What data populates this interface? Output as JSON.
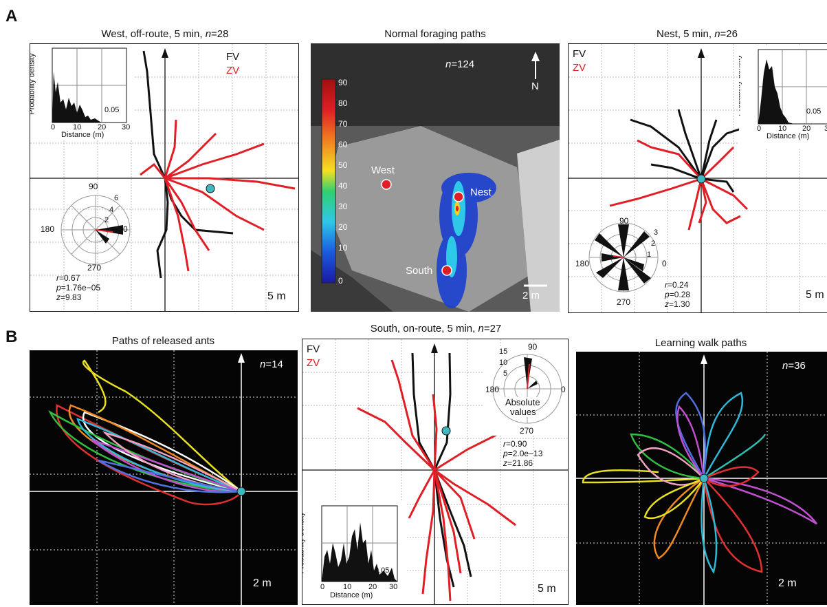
{
  "panel_labels": {
    "A": "A",
    "B": "B"
  },
  "titles": {
    "west": {
      "text": "West, off-route, 5 min, ",
      "n": "n",
      "val": "=28"
    },
    "normal": "Normal foraging paths",
    "nest": {
      "text": "Nest, 5 min, ",
      "n": "n",
      "val": "=26"
    },
    "released": "Paths of released ants",
    "south": {
      "text": "South, on-route, 5 min, ",
      "n": "n",
      "val": "=27"
    },
    "learning": "Learning walk paths"
  },
  "legend": {
    "fv": "FV",
    "zv": "ZV"
  },
  "colors": {
    "fv": "#111111",
    "zv": "#e01e25",
    "start": "#3fb8c0"
  },
  "scales": {
    "west": "5 m",
    "nest": "5 m",
    "south": "5 m",
    "released": "2 m",
    "learning": "2 m",
    "map": "2 m"
  },
  "hist": {
    "ylabel": "Probability density",
    "xlabel": "Distance (m)",
    "ytick": "0.05",
    "xticks": [
      "0",
      "10",
      "20",
      "30"
    ]
  },
  "polar": {
    "angles": [
      "90",
      "180",
      "270",
      "0"
    ],
    "west_r": [
      "2",
      "4",
      "6"
    ],
    "nest_r": [
      "1",
      "2",
      "3"
    ],
    "south_r": [
      "5",
      "10",
      "15"
    ],
    "abs_label_1": "Absolute",
    "abs_label_2": "values"
  },
  "stats": {
    "west": {
      "r": "=0.67",
      "p": "=1.76e−05",
      "z": "=9.83"
    },
    "nest": {
      "r": "=0.24",
      "p": "=0.28",
      "z": "=1.30"
    },
    "south": {
      "r": "=0.90",
      "p": "=2.0e−13",
      "z": "=21.86"
    }
  },
  "map": {
    "n_label": "=124",
    "north": "N",
    "sites": [
      "West",
      "Nest",
      "South"
    ],
    "colorbar_ticks": [
      "90",
      "80",
      "70",
      "60",
      "50",
      "40",
      "30",
      "20",
      "10",
      "0"
    ]
  },
  "released_n": "=14",
  "learning_n": "=36"
}
